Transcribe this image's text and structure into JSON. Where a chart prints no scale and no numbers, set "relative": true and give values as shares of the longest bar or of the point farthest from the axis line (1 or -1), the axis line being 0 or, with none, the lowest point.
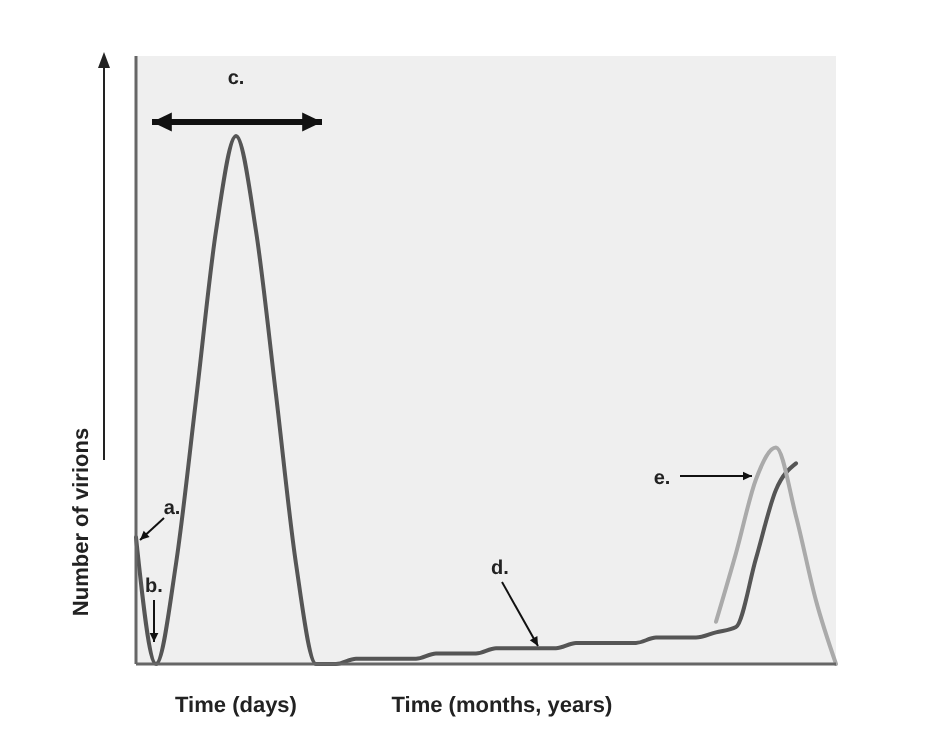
{
  "chart_data": {
    "type": "line",
    "relative": true,
    "xlabel": "Time (days)",
    "ylabel": "Number of virions",
    "annotations": [
      "a.",
      "b.",
      "c.",
      "d.",
      "e.",
      "Time (months, years)"
    ],
    "categories": [
      null,
      null,
      null,
      null,
      null,
      null,
      null,
      null,
      null,
      null,
      null,
      null,
      null,
      null,
      null,
      null,
      null,
      null,
      null,
      null,
      null,
      null,
      null,
      null,
      null,
      null,
      null,
      null,
      null,
      null,
      null,
      null,
      null,
      null,
      null,
      null
    ],
    "series": [
      {
        "color": "#555555",
        "values": [
          0.24,
          0.0,
          0.19,
          0.5,
          0.82,
          1.0,
          0.82,
          0.51,
          0.19,
          0.0,
          0.0,
          0.01,
          0.01,
          0.01,
          0.01,
          0.02,
          0.02,
          0.02,
          0.03,
          0.03,
          0.03,
          0.03,
          0.04,
          0.04,
          0.04,
          0.04,
          0.05,
          0.05,
          0.05,
          0.06,
          0.07,
          0.2,
          0.33,
          0.38,
          null,
          null
        ]
      },
      {
        "color": "#aaaaaa",
        "values": [
          null,
          null,
          null,
          null,
          null,
          null,
          null,
          null,
          null,
          null,
          null,
          null,
          null,
          null,
          null,
          null,
          null,
          null,
          null,
          null,
          null,
          null,
          null,
          null,
          null,
          null,
          null,
          null,
          null,
          0.08,
          0.21,
          0.35,
          0.41,
          0.28,
          0.12,
          0.0
        ]
      }
    ]
  }
}
